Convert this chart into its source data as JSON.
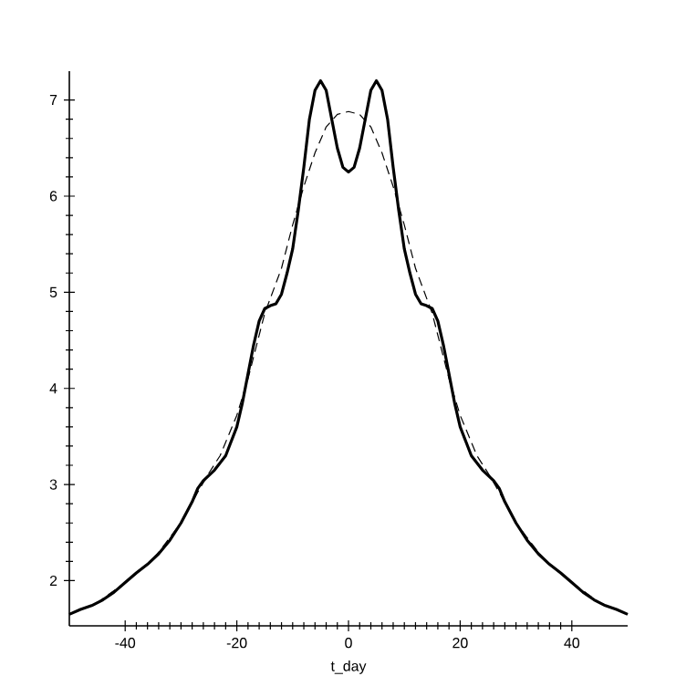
{
  "chart_data": {
    "type": "line",
    "xlabel": "t_day",
    "xlim": [
      -50,
      50
    ],
    "ylim": [
      1.53,
      7.3
    ],
    "xticks": [
      -40,
      -20,
      0,
      20,
      40
    ],
    "yticks": [
      2,
      3,
      4,
      5,
      6,
      7
    ],
    "marker": "none",
    "series": [
      {
        "color": "#000000",
        "line_style": "solid",
        "x": [
          -50,
          -48,
          -46,
          -44,
          -42,
          -40,
          -38,
          -36,
          -34,
          -32,
          -30,
          -28,
          -27,
          -26,
          -24,
          -22,
          -20,
          -19,
          -18,
          -17,
          -16,
          -15,
          -14,
          -13,
          -12,
          -11,
          -10,
          -9,
          -8,
          -7,
          -6,
          -5,
          -4,
          -3,
          -2,
          -1,
          0,
          1,
          2,
          3,
          4,
          5,
          6,
          7,
          8,
          9,
          10,
          11,
          12,
          13,
          14,
          15,
          16,
          17,
          18,
          19,
          20,
          22,
          24,
          26,
          27,
          28,
          30,
          32,
          34,
          36,
          38,
          40,
          42,
          44,
          46,
          48,
          50
        ],
        "values": [
          1.65,
          1.7,
          1.74,
          1.8,
          1.88,
          1.98,
          2.08,
          2.17,
          2.28,
          2.42,
          2.6,
          2.82,
          2.96,
          3.04,
          3.15,
          3.3,
          3.6,
          3.85,
          4.15,
          4.45,
          4.7,
          4.83,
          4.86,
          4.88,
          4.98,
          5.2,
          5.45,
          5.85,
          6.3,
          6.8,
          7.1,
          7.2,
          7.1,
          6.8,
          6.5,
          6.3,
          6.25,
          6.3,
          6.5,
          6.8,
          7.1,
          7.2,
          7.1,
          6.8,
          6.3,
          5.85,
          5.45,
          5.2,
          4.98,
          4.88,
          4.86,
          4.83,
          4.7,
          4.45,
          4.15,
          3.85,
          3.6,
          3.3,
          3.15,
          3.04,
          2.96,
          2.82,
          2.6,
          2.42,
          2.28,
          2.17,
          2.08,
          1.98,
          1.88,
          1.8,
          1.74,
          1.7,
          1.65
        ]
      },
      {
        "color": "#000000",
        "line_style": "dashed",
        "x": [
          -50,
          -45,
          -40,
          -35,
          -30,
          -27,
          -25,
          -23,
          -20,
          -18,
          -15,
          -12,
          -10,
          -8,
          -6,
          -4,
          -2,
          0,
          2,
          4,
          6,
          8,
          10,
          12,
          15,
          18,
          20,
          23,
          25,
          27,
          30,
          35,
          40,
          45,
          50
        ],
        "values": [
          1.65,
          1.77,
          1.98,
          2.22,
          2.6,
          2.92,
          3.12,
          3.3,
          3.72,
          4.1,
          4.78,
          5.25,
          5.7,
          6.1,
          6.45,
          6.72,
          6.85,
          6.88,
          6.85,
          6.72,
          6.45,
          6.1,
          5.7,
          5.25,
          4.78,
          4.1,
          3.72,
          3.3,
          3.12,
          2.92,
          2.6,
          2.22,
          1.98,
          1.77,
          1.65
        ]
      }
    ]
  }
}
